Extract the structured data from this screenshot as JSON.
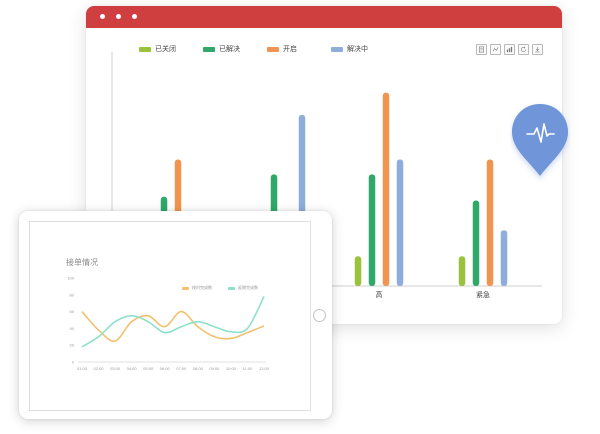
{
  "browser": {
    "title_bar_color": "#cf3f3f",
    "window_dots": 3
  },
  "toolbox": {
    "icons": [
      "data-view-icon",
      "line-chart-icon",
      "bar-chart-icon",
      "restore-icon",
      "save-image-icon"
    ]
  },
  "chart_data": [
    {
      "type": "bar",
      "categories": [
        "",
        "",
        "高",
        "紧急"
      ],
      "series": [
        {
          "name": "已关闭",
          "color": "#9ac23c",
          "values": [
            null,
            null,
            8,
            8
          ]
        },
        {
          "name": "已解决",
          "color": "#2fa86a",
          "values": [
            24,
            30,
            30,
            23
          ]
        },
        {
          "name": "开启",
          "color": "#ef9550",
          "values": [
            34,
            null,
            52,
            34
          ]
        },
        {
          "name": "解决中",
          "color": "#8faddb",
          "values": [
            null,
            46,
            34,
            15
          ]
        }
      ],
      "ylim": [
        0,
        57
      ],
      "legend": "top-left",
      "grid": false
    },
    {
      "type": "line",
      "title": "接单情况",
      "x": [
        "01:00",
        "02:00",
        "03:00",
        "04:00",
        "05:00",
        "06:00",
        "07:00",
        "08:00",
        "09:00",
        "10:00",
        "11:00",
        "12:00"
      ],
      "series": [
        {
          "name": "按时完成数",
          "color": "#f2c06e",
          "values": [
            60,
            38,
            25,
            48,
            55,
            42,
            60,
            42,
            30,
            28,
            35,
            43
          ]
        },
        {
          "name": "延期完成数",
          "color": "#8ce0cc",
          "values": [
            18,
            30,
            48,
            55,
            48,
            35,
            42,
            48,
            42,
            36,
            40,
            78
          ]
        }
      ],
      "yticks": [
        "100",
        "80",
        "60",
        "40",
        "20",
        "0"
      ],
      "ylim": [
        0,
        100
      ],
      "legend": "top-right",
      "grid": false
    }
  ],
  "pin": {
    "icon": "heartbeat-icon",
    "color": "#6f95d9"
  }
}
